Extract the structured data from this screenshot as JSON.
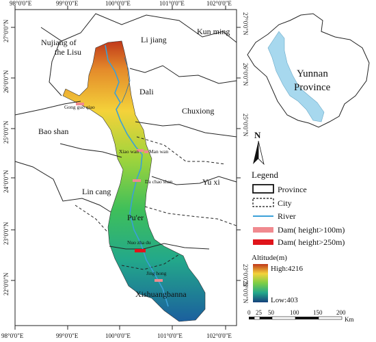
{
  "map": {
    "lon_ticks_top": [
      "98°0'0\"E",
      "99°0'0\"E",
      "100°0'0\"E",
      "101°0'0\"E",
      "102°0'0\"E"
    ],
    "lon_ticks_bottom": [
      "98°0'0\"E",
      "99°0'0\"E",
      "100°0'0\"E",
      "101°0'0\"E",
      "102°0'0\"E"
    ],
    "lat_ticks_left": [
      "27°0'0\"N",
      "26°0'0\"N",
      "25°0'0\"N",
      "24°0'0\"N",
      "23°0'0\"N",
      "22°0'0\"N"
    ],
    "lat_ticks_right": [
      "27°0'0\"N",
      "26°0'0\"N",
      "25°0'0\"N",
      "24°0'0\"N",
      "23°0'0\"N",
      "22°0'0\"N"
    ],
    "regions": {
      "nujiang_line1": "Nujiang of",
      "nujiang_line2": "the Lisu",
      "lijiang": "Li jiang",
      "kunming": "Kun ming",
      "dali": "Dali",
      "chuxiong": "Chuxiong",
      "baoshan": "Bao shan",
      "lincang": "Lin cang",
      "yuxi": "Yu xi",
      "puer": "Pu'er",
      "xishuangbanna": "Xishuangbanna"
    },
    "dams": {
      "gongguoqiao": "Gong guo qiao",
      "xiaowan": "Xiao wan",
      "manwan": "Man wan",
      "dachaoshan": "Da chao shan",
      "nuozhadu": "Nuo zha du",
      "jinghong": "Jing hong"
    }
  },
  "inset": {
    "line1": "Yunnan",
    "line2": "Province",
    "fill_color": "#a7d8ee"
  },
  "north_arrow": {
    "label": "N"
  },
  "legend": {
    "title": "Legend",
    "province": "Province",
    "city": "City",
    "river": "River",
    "dam_100": "Dam( height>100m)",
    "dam_250": "Dam( height>250m)",
    "dam_100_color": "#f08a8f",
    "dam_250_color": "#e0141b",
    "river_color": "#3aa0d8",
    "altitude_title": "Altitude(m)",
    "altitude_high": "High:4216",
    "altitude_low": "Low:403"
  },
  "scale_bar": {
    "ticks": [
      "0",
      "25",
      "50",
      "100",
      "150",
      "200"
    ],
    "unit": "Km"
  }
}
